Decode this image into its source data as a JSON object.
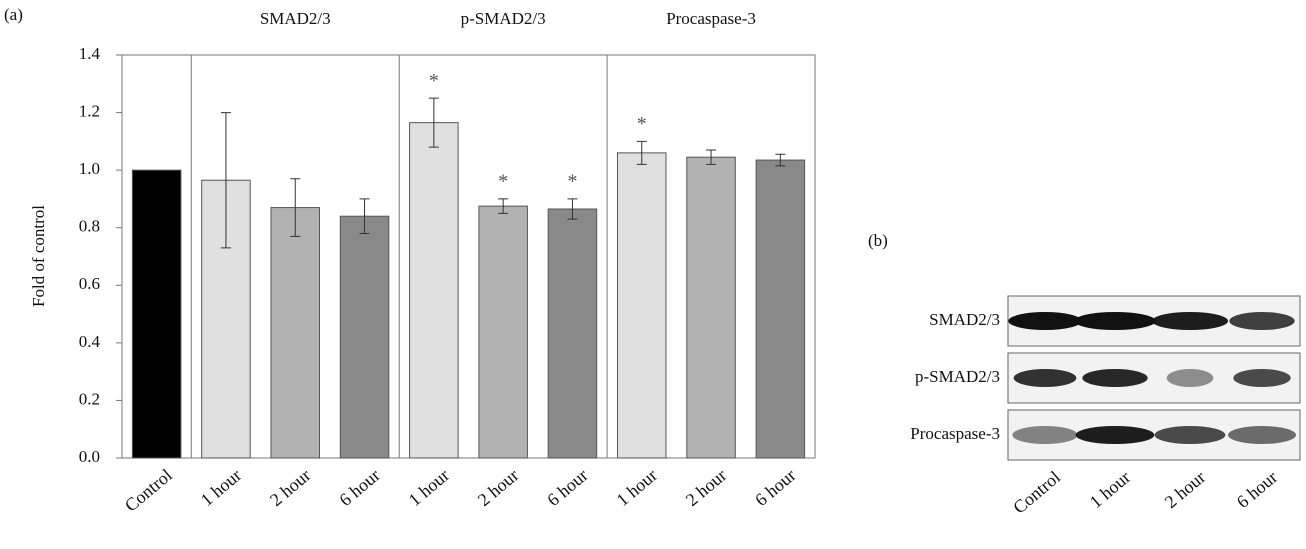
{
  "panel_labels": [
    "(a)",
    "(b)"
  ],
  "chart_data": {
    "type": "bar",
    "y_label": "Fold of control",
    "groups": [
      "SMAD2/3",
      "p-SMAD2/3",
      "Procaspase-3"
    ],
    "categories": [
      "Control",
      "1 hour",
      "2 hour",
      "6 hour",
      "1 hour",
      "2 hour",
      "6 hour",
      "1 hour",
      "2 hour",
      "6 hour"
    ],
    "series": [
      {
        "values": [
          1.0,
          0.965,
          0.87,
          0.84,
          1.165,
          0.875,
          0.865,
          1.06,
          1.045,
          1.035
        ],
        "errors": [
          0,
          0.235,
          0.1,
          0.06,
          0.085,
          0.025,
          0.035,
          0.04,
          0.025,
          0.02
        ],
        "colors": [
          "#000000",
          "#e0e0e0",
          "#b2b2b2",
          "#898989",
          "#e0e0e0",
          "#b2b2b2",
          "#898989",
          "#e0e0e0",
          "#b2b2b2",
          "#898989"
        ],
        "significance": [
          null,
          null,
          null,
          null,
          "*",
          "*",
          "*",
          "*",
          null,
          null
        ]
      }
    ],
    "ylim": [
      0,
      1.4
    ],
    "yticks": [
      {
        "value": 0,
        "label": "0.0"
      },
      0.2,
      0.4,
      0.6,
      0.8,
      {
        "value": 1,
        "label": "1.0"
      },
      1.2,
      1.4
    ]
  },
  "blot": {
    "rows": [
      "SMAD2/3",
      "p-SMAD2/3",
      "Procaspase-3"
    ],
    "lanes": [
      "Control",
      "1 hour",
      "2 hour",
      "6 hour"
    ]
  }
}
